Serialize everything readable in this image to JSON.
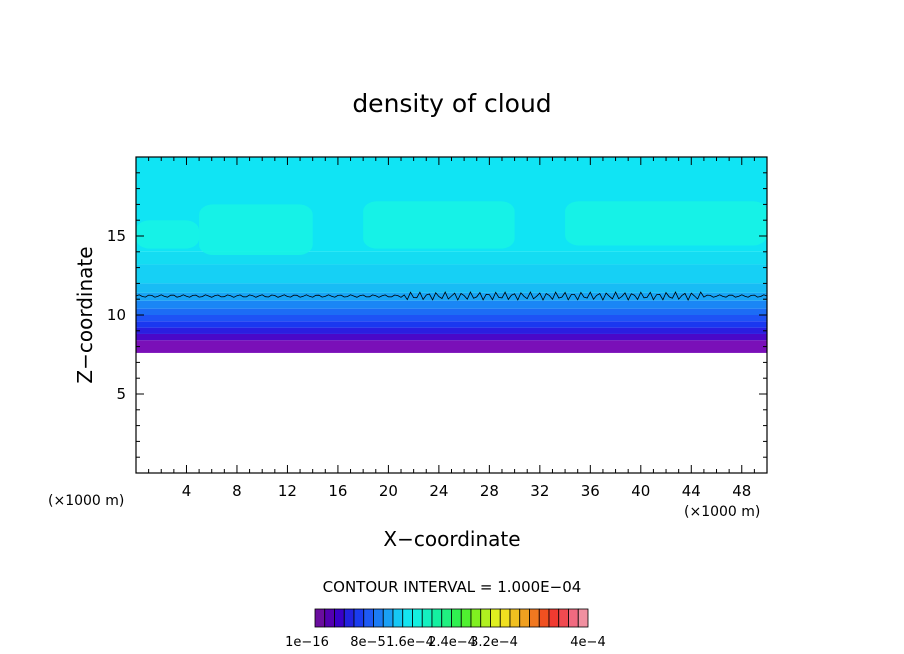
{
  "chart_data": {
    "type": "heatmap",
    "title": "density of cloud",
    "xlabel": "X−coordinate",
    "ylabel": "Z−coordinate",
    "x_unit": "(×1000 m)",
    "y_unit": "(×1000 m)",
    "xlim": [
      0,
      50
    ],
    "ylim": [
      0,
      20
    ],
    "x_ticks": [
      4,
      8,
      12,
      16,
      20,
      24,
      28,
      32,
      36,
      40,
      44,
      48
    ],
    "x_tick_labels": [
      "4",
      "8",
      "12",
      "16",
      "20",
      "24",
      "28",
      "32",
      "36",
      "40",
      "44",
      "48"
    ],
    "y_ticks": [
      5,
      10,
      15
    ],
    "y_tick_labels": [
      "5",
      "10",
      "15"
    ],
    "contour_interval_text": "CONTOUR INTERVAL = 1.000E−04",
    "colorbar": {
      "colors": [
        "#6a0d9e",
        "#5400b0",
        "#3a00c8",
        "#2222e0",
        "#1a3cf0",
        "#1e5af5",
        "#1c7cf5",
        "#1aa0f5",
        "#16c8f5",
        "#14e4f0",
        "#14f0e0",
        "#14f0c0",
        "#14f0a0",
        "#20f080",
        "#30f050",
        "#50f030",
        "#80f020",
        "#b0f020",
        "#e0f020",
        "#f0e020",
        "#f0c020",
        "#f0a020",
        "#f07820",
        "#f05020",
        "#f03a30",
        "#f04a50",
        "#f06a80",
        "#f090a0"
      ],
      "tick_labels": [
        "1e−16",
        "8e−5",
        "1.6e−4",
        "2.4e−4",
        "3.2e−4",
        "4e−4"
      ]
    },
    "bands": [
      {
        "z_from": 7.6,
        "z_to": 8.4,
        "color": "#7a10b8"
      },
      {
        "z_from": 8.4,
        "z_to": 8.8,
        "color": "#4a08c8"
      },
      {
        "z_from": 8.8,
        "z_to": 9.2,
        "color": "#2a1ee0"
      },
      {
        "z_from": 9.2,
        "z_to": 9.6,
        "color": "#1a38f0"
      },
      {
        "z_from": 9.6,
        "z_to": 10.0,
        "color": "#1e52f5"
      },
      {
        "z_from": 10.0,
        "z_to": 10.4,
        "color": "#1c6cf5"
      },
      {
        "z_from": 10.4,
        "z_to": 10.9,
        "color": "#1a86f5"
      },
      {
        "z_from": 10.9,
        "z_to": 11.4,
        "color": "#18a4f5"
      },
      {
        "z_from": 11.4,
        "z_to": 12.0,
        "color": "#18bcf5"
      },
      {
        "z_from": 12.0,
        "z_to": 13.2,
        "color": "#16d0f5"
      },
      {
        "z_from": 13.2,
        "z_to": 14.0,
        "color": "#14dcf2"
      },
      {
        "z_from": 14.0,
        "z_to": 20.0,
        "color": "#10e4f4"
      }
    ],
    "bright_patches": [
      {
        "x_from": 0,
        "x_to": 5,
        "z_from": 14.2,
        "z_to": 16.0
      },
      {
        "x_from": 5,
        "x_to": 14,
        "z_from": 13.8,
        "z_to": 17.0
      },
      {
        "x_from": 18,
        "x_to": 30,
        "z_from": 14.2,
        "z_to": 17.2
      },
      {
        "x_from": 34,
        "x_to": 50,
        "z_from": 14.4,
        "z_to": 17.2
      }
    ],
    "contour_line_z": 11.2
  }
}
